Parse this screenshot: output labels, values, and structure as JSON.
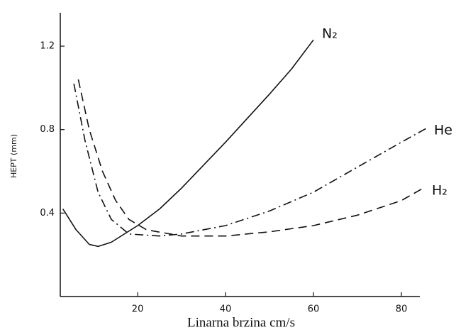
{
  "chart_data": {
    "type": "line",
    "x_label": "Linarna brzina cm/s",
    "y_label": "HEPT (mm)",
    "xlim": [
      2.4,
      84.2
    ],
    "ylim": [
      0,
      1.36
    ],
    "xticks": [
      20,
      40,
      60,
      80
    ],
    "yticks": [
      0.4,
      0.8,
      1.2
    ],
    "series": [
      {
        "name": "N₂",
        "color": "#111111",
        "style": "solid",
        "x": [
          3,
          6,
          9,
          11,
          14,
          20,
          25,
          30,
          40,
          50,
          55,
          60
        ],
        "values": [
          0.42,
          0.32,
          0.25,
          0.24,
          0.26,
          0.34,
          0.42,
          0.52,
          0.74,
          0.97,
          1.09,
          1.23
        ]
      },
      {
        "name": "He",
        "color": "#111111",
        "style": "dashdot",
        "x": [
          5.5,
          8,
          11,
          14,
          18,
          25,
          30,
          40,
          50,
          60,
          70,
          80,
          86
        ],
        "values": [
          1.02,
          0.75,
          0.5,
          0.37,
          0.3,
          0.29,
          0.3,
          0.34,
          0.41,
          0.5,
          0.62,
          0.74,
          0.81
        ]
      },
      {
        "name": "H₂",
        "color": "#111111",
        "style": "dashed",
        "x": [
          6.5,
          9,
          12,
          15,
          18,
          22,
          30,
          40,
          50,
          60,
          70,
          80,
          85
        ],
        "values": [
          1.04,
          0.8,
          0.6,
          0.46,
          0.37,
          0.32,
          0.29,
          0.29,
          0.31,
          0.34,
          0.39,
          0.46,
          0.52
        ]
      }
    ]
  }
}
